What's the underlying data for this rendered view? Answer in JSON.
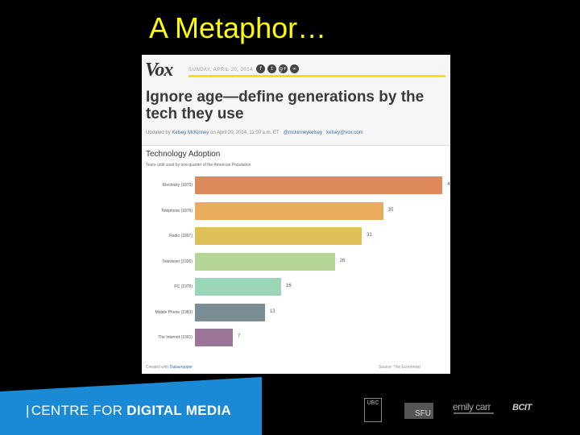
{
  "slide": {
    "title": "A Metaphor…"
  },
  "article": {
    "logo": "Vox",
    "dateline": "SUNDAY, APRIL 20, 2014",
    "social_icons": [
      "facebook-icon",
      "twitter-icon",
      "google-plus-icon",
      "share-icon"
    ],
    "social_glyphs": [
      "f",
      "t",
      "g+",
      "∞"
    ],
    "headline": "Ignore age—define generations by the tech they use",
    "byline_prefix": "Updated by ",
    "byline_author": "Kelsey McKinney",
    "byline_date": " on April 20, 2014, 11:00 a.m. ET",
    "byline_twitter": "@mckinneykelsey",
    "byline_email": "kelsey@vox.com"
  },
  "chart_data": {
    "type": "bar",
    "title": "Technology Adoption",
    "subtitle": "Years until used by one-quarter of the American Population",
    "categories": [
      "Electricity (1873)",
      "Telephone (1876)",
      "Radio (1897)",
      "Television (1926)",
      "PC (1975)",
      "Mobile Phone (1983)",
      "The Internet (1991)"
    ],
    "values": [
      46,
      35,
      31,
      26,
      16,
      13,
      7
    ],
    "colors": [
      "#df8a5c",
      "#e9ac5d",
      "#dfbf5a",
      "#b5d596",
      "#9cd6b9",
      "#7a8d94",
      "#9a7596"
    ],
    "xlim": [
      0,
      50
    ],
    "footer": "Created with ",
    "footer_brand": "Datawrapper",
    "source": "Source: The Economist"
  },
  "footer": {
    "centre_prefix": "CENTRE FOR ",
    "centre_bold": "DIGITAL MEDIA",
    "ubc": "UBC",
    "sfu": "SFU",
    "emily": "emily carr",
    "bcit": "BCIT"
  }
}
